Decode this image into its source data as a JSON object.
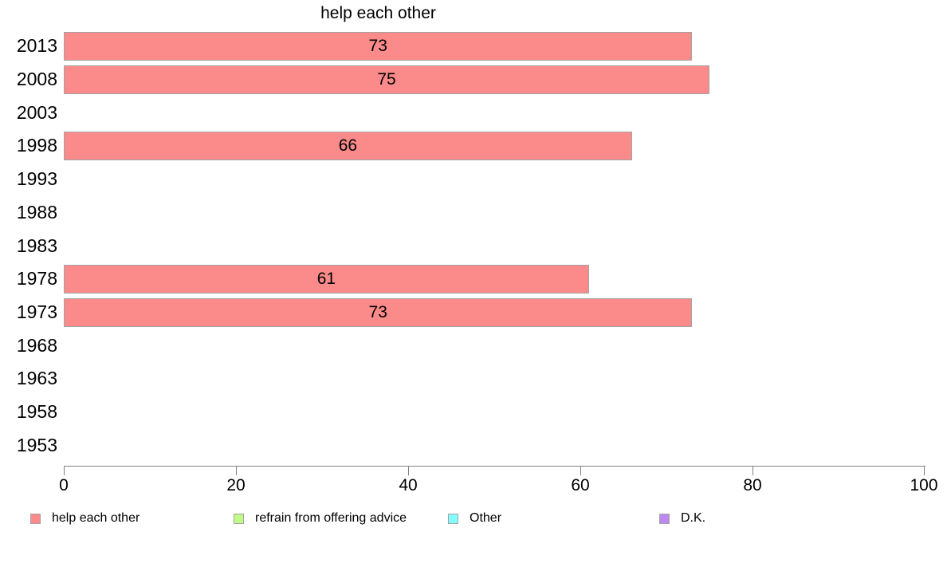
{
  "chart_data": {
    "type": "bar",
    "orientation": "horizontal",
    "title": "help each other",
    "categories": [
      "2013",
      "2008",
      "2003",
      "1998",
      "1993",
      "1988",
      "1983",
      "1978",
      "1973",
      "1968",
      "1963",
      "1958",
      "1953"
    ],
    "values": [
      73,
      75,
      null,
      66,
      null,
      null,
      null,
      61,
      73,
      null,
      null,
      null,
      null
    ],
    "series_name": "help each other",
    "xlabel": "",
    "ylabel": "",
    "xlim": [
      0,
      100
    ],
    "x_ticks": [
      0,
      20,
      40,
      60,
      80,
      100
    ],
    "grid": false,
    "value_labels_position": "center-of-bar",
    "legend_position": "bottom",
    "legend": [
      {
        "label": "help each other",
        "color": "#fb8a8a"
      },
      {
        "label": "refrain from offering advice",
        "color": "#c2fa8a"
      },
      {
        "label": "Other",
        "color": "#85fdfd"
      },
      {
        "label": "D.K.",
        "color": "#bd88f0"
      }
    ],
    "bar_border_color": "#a3a3a3",
    "axis_color": "#808080",
    "text_color": "#000000"
  }
}
